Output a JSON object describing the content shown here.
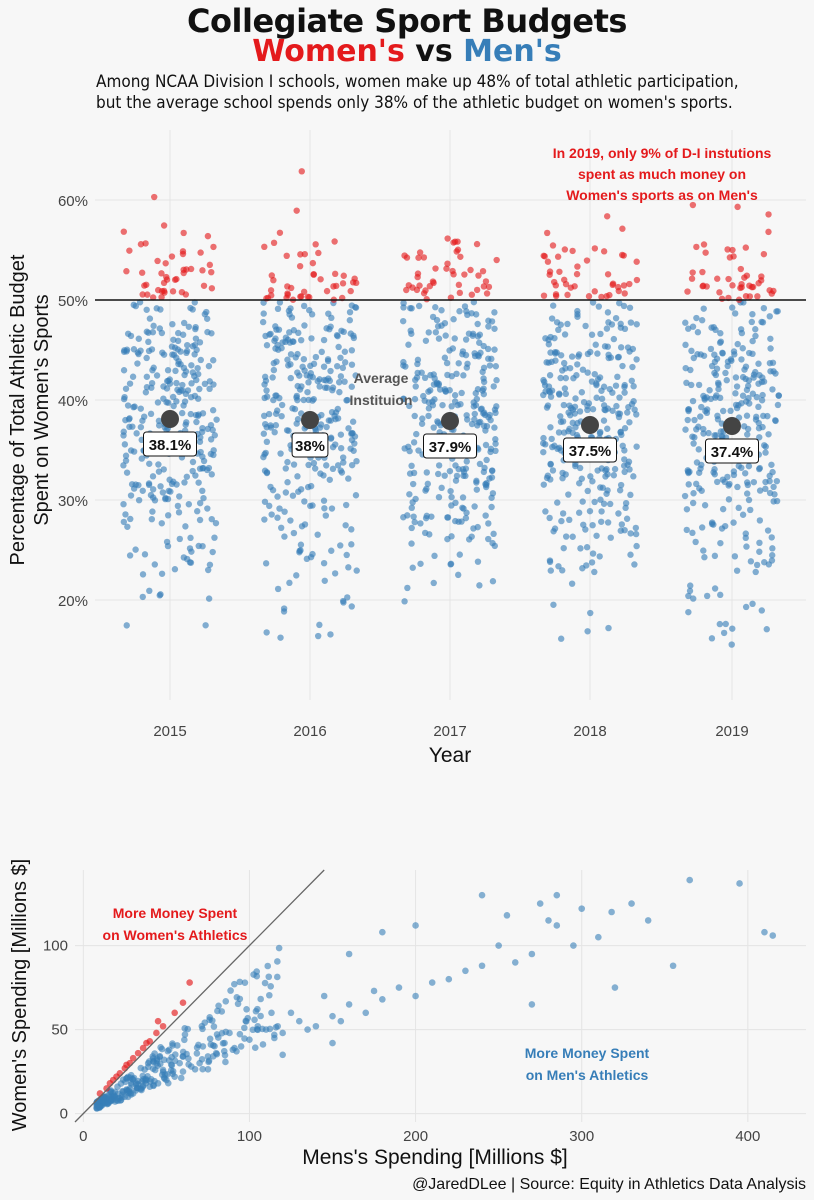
{
  "title": "Collegiate Sport Budgets",
  "subtitle": {
    "women": "Women's",
    "vs": "vs",
    "men": "Men's"
  },
  "description": [
    "Among NCAA Division I schools, women make up 48% of total athletic participation,",
    "but the average school spends only 38% of the athletic budget on women's sports."
  ],
  "colors": {
    "women": "#e41a1c",
    "men": "#377eb8",
    "average": "#444444"
  },
  "chart_data": [
    {
      "type": "scatter",
      "title": "",
      "xlabel": "Year",
      "ylabel": [
        "Percentage of Total Athletic Budget",
        "Spent on Women's Sports"
      ],
      "categories": [
        "2015",
        "2016",
        "2017",
        "2018",
        "2019"
      ],
      "ylim": [
        10,
        67
      ],
      "yticks": [
        20,
        30,
        40,
        50,
        60
      ],
      "ytick_labels": [
        "20%",
        "30%",
        "40%",
        "50%",
        "60%"
      ],
      "reference_line": 50,
      "grid": true,
      "averages": [
        38.1,
        38.0,
        37.9,
        37.5,
        37.4
      ],
      "average_labels": [
        "38.1%",
        "38%",
        "37.9%",
        "37.5%",
        "37.4%"
      ],
      "average_annotation": [
        "Average",
        "Instituion"
      ],
      "annotation": [
        "In 2019, only 9% of D-I instutions",
        "spent as much money on",
        "Women's sports as on Men's"
      ],
      "series": [
        {
          "name": "Women's",
          "points_per_year": 45,
          "range": [
            50,
            63.5
          ]
        },
        {
          "name": "Men's",
          "points_per_year": 300,
          "range": [
            15,
            50
          ]
        }
      ]
    },
    {
      "type": "scatter",
      "xlabel": "Mens's Spending [Millions $]",
      "ylabel": "Women's Spending [Millions $]",
      "xlim": [
        -5,
        435
      ],
      "ylim": [
        -5,
        145
      ],
      "xticks": [
        0,
        100,
        200,
        300,
        400
      ],
      "yticks": [
        0,
        50,
        100
      ],
      "grid": true,
      "diagonal": "y = x",
      "annotations": {
        "women": [
          "More Money Spent",
          "on Women's Athletics"
        ],
        "men": [
          "More Money Spent",
          "on Men's Athletics"
        ]
      },
      "series": [
        {
          "name": "Women's",
          "points": [
            [
              10,
              12
            ],
            [
              14,
              15
            ],
            [
              18,
              20
            ],
            [
              22,
              24
            ],
            [
              25,
              27
            ],
            [
              28,
              30
            ],
            [
              30,
              33
            ],
            [
              33,
              36
            ],
            [
              36,
              39
            ],
            [
              40,
              43
            ],
            [
              44,
              48
            ],
            [
              48,
              52
            ],
            [
              55,
              60
            ],
            [
              60,
              66
            ],
            [
              64,
              78
            ],
            [
              45,
              55
            ],
            [
              38,
              42
            ],
            [
              26,
              29
            ],
            [
              20,
              22
            ],
            [
              16,
              18
            ]
          ]
        },
        {
          "name": "Men's",
          "points": [
            [
              410,
              108
            ],
            [
              415,
              106
            ],
            [
              395,
              137
            ],
            [
              365,
              139
            ],
            [
              330,
              125
            ],
            [
              340,
              115
            ],
            [
              318,
              120
            ],
            [
              310,
              105
            ],
            [
              295,
              100
            ],
            [
              300,
              122
            ],
            [
              285,
              112
            ],
            [
              280,
              115
            ],
            [
              270,
              95
            ],
            [
              260,
              90
            ],
            [
              250,
              100
            ],
            [
              240,
              88
            ],
            [
              230,
              85
            ],
            [
              220,
              80
            ],
            [
              210,
              78
            ],
            [
              200,
              70
            ],
            [
              190,
              75
            ],
            [
              180,
              68
            ],
            [
              175,
              73
            ],
            [
              170,
              60
            ],
            [
              160,
              65
            ],
            [
              155,
              55
            ],
            [
              150,
              58
            ],
            [
              140,
              52
            ],
            [
              135,
              50
            ],
            [
              130,
              55
            ],
            [
              120,
              48
            ],
            [
              115,
              45
            ],
            [
              110,
              50
            ],
            [
              100,
              44
            ],
            [
              95,
              40
            ],
            [
              90,
              38
            ],
            [
              85,
              42
            ],
            [
              80,
              36
            ],
            [
              75,
              34
            ],
            [
              70,
              30
            ],
            [
              65,
              28
            ],
            [
              60,
              25
            ],
            [
              55,
              22
            ],
            [
              50,
              20
            ],
            [
              45,
              18
            ],
            [
              40,
              16
            ],
            [
              35,
              14
            ],
            [
              30,
              12
            ],
            [
              25,
              10
            ],
            [
              20,
              8
            ],
            [
              15,
              6
            ],
            [
              10,
              4
            ],
            [
              180,
              108
            ],
            [
              200,
              112
            ],
            [
              240,
              130
            ],
            [
              255,
              118
            ],
            [
              275,
              125
            ],
            [
              285,
              130
            ],
            [
              160,
              95
            ],
            [
              145,
              70
            ],
            [
              125,
              60
            ],
            [
              105,
              52
            ],
            [
              88,
              48
            ],
            [
              72,
              40
            ],
            [
              58,
              30
            ],
            [
              48,
              26
            ],
            [
              38,
              20
            ],
            [
              32,
              18
            ],
            [
              28,
              15
            ],
            [
              24,
              13
            ],
            [
              150,
              42
            ],
            [
              120,
              35
            ],
            [
              270,
              65
            ],
            [
              320,
              75
            ],
            [
              355,
              88
            ]
          ]
        }
      ]
    }
  ],
  "footer": "@JaredDLee | Source: Equity in Athletics Data Analysis"
}
